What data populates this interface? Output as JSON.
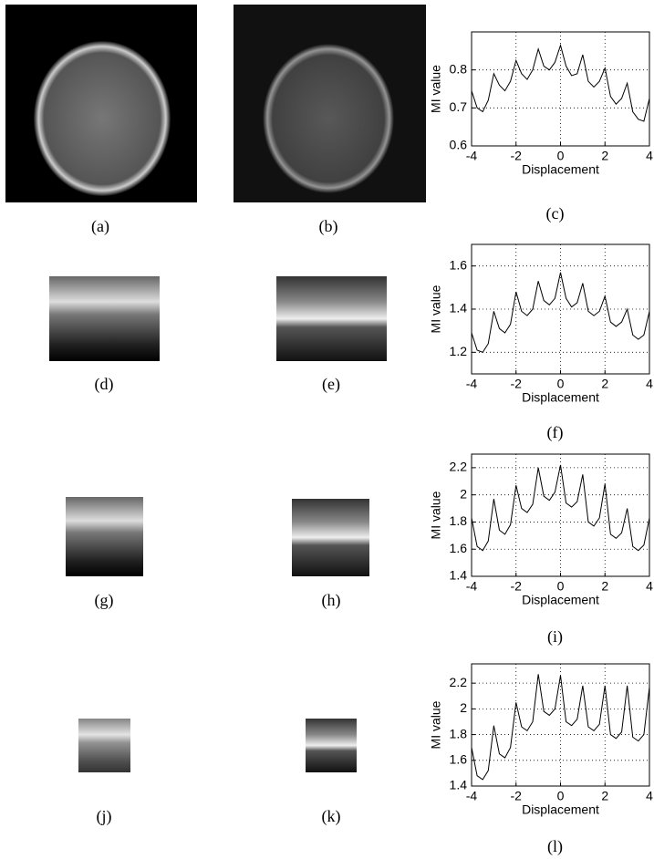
{
  "image_captions": [
    "(a)",
    "(b)",
    "(d)",
    "(e)",
    "(g)",
    "(h)",
    "(j)",
    "(k)"
  ],
  "chart_data": [
    {
      "type": "line",
      "caption": "(c)",
      "xlabel": "Displacement",
      "ylabel": "MI value",
      "x": [
        -4,
        -3.75,
        -3.5,
        -3.25,
        -3,
        -2.75,
        -2.5,
        -2.25,
        -2,
        -1.75,
        -1.5,
        -1.25,
        -1,
        -0.75,
        -0.5,
        -0.25,
        0,
        0.25,
        0.5,
        0.75,
        1,
        1.25,
        1.5,
        1.75,
        2,
        2.25,
        2.5,
        2.75,
        3,
        3.25,
        3.5,
        3.75,
        4
      ],
      "color": "#000000",
      "values": [
        0.745,
        0.7,
        0.69,
        0.72,
        0.79,
        0.76,
        0.745,
        0.77,
        0.825,
        0.79,
        0.775,
        0.8,
        0.855,
        0.81,
        0.8,
        0.82,
        0.865,
        0.81,
        0.785,
        0.79,
        0.84,
        0.77,
        0.755,
        0.77,
        0.805,
        0.73,
        0.71,
        0.725,
        0.765,
        0.69,
        0.67,
        0.665,
        0.725
      ],
      "xlim": [
        -4,
        4
      ],
      "ylim": [
        0.6,
        0.9
      ],
      "xticks": [
        -4,
        -2,
        0,
        2,
        4
      ],
      "yticks": [
        0.6,
        0.7,
        0.8
      ],
      "grid": true
    },
    {
      "type": "line",
      "caption": "(f)",
      "xlabel": "Displacement",
      "ylabel": "MI value",
      "x": [
        -4,
        -3.75,
        -3.5,
        -3.25,
        -3,
        -2.75,
        -2.5,
        -2.25,
        -2,
        -1.75,
        -1.5,
        -1.25,
        -1,
        -0.75,
        -0.5,
        -0.25,
        0,
        0.25,
        0.5,
        0.75,
        1,
        1.25,
        1.5,
        1.75,
        2,
        2.25,
        2.5,
        2.75,
        3,
        3.25,
        3.5,
        3.75,
        4
      ],
      "color": "#000000",
      "values": [
        1.29,
        1.21,
        1.2,
        1.24,
        1.39,
        1.31,
        1.29,
        1.33,
        1.48,
        1.39,
        1.37,
        1.4,
        1.53,
        1.44,
        1.42,
        1.45,
        1.57,
        1.45,
        1.41,
        1.43,
        1.52,
        1.39,
        1.37,
        1.39,
        1.46,
        1.34,
        1.32,
        1.34,
        1.4,
        1.28,
        1.26,
        1.28,
        1.39
      ],
      "xlim": [
        -4,
        4
      ],
      "ylim": [
        1.1,
        1.7
      ],
      "xticks": [
        -4,
        -2,
        0,
        2,
        4
      ],
      "yticks": [
        1.2,
        1.4,
        1.6
      ],
      "grid": true
    },
    {
      "type": "line",
      "caption": "(i)",
      "xlabel": "Displacement",
      "ylabel": "MI value",
      "x": [
        -4,
        -3.75,
        -3.5,
        -3.25,
        -3,
        -2.75,
        -2.5,
        -2.25,
        -2,
        -1.75,
        -1.5,
        -1.25,
        -1,
        -0.75,
        -0.5,
        -0.25,
        0,
        0.25,
        0.5,
        0.75,
        1,
        1.25,
        1.5,
        1.75,
        2,
        2.25,
        2.5,
        2.75,
        3,
        3.25,
        3.5,
        3.75,
        4
      ],
      "color": "#000000",
      "values": [
        1.83,
        1.62,
        1.59,
        1.66,
        1.97,
        1.74,
        1.71,
        1.78,
        2.07,
        1.9,
        1.87,
        1.93,
        2.2,
        1.99,
        1.96,
        2.02,
        2.22,
        1.94,
        1.91,
        1.95,
        2.15,
        1.8,
        1.77,
        1.83,
        2.08,
        1.71,
        1.68,
        1.72,
        1.9,
        1.62,
        1.59,
        1.63,
        1.83
      ],
      "xlim": [
        -4,
        4
      ],
      "ylim": [
        1.4,
        2.3
      ],
      "xticks": [
        -4,
        -2,
        0,
        2,
        4
      ],
      "yticks": [
        1.4,
        1.6,
        1.8,
        2,
        2.2
      ],
      "grid": true
    },
    {
      "type": "line",
      "caption": "(l)",
      "xlabel": "Displacement",
      "ylabel": "MI value",
      "x": [
        -4,
        -3.75,
        -3.5,
        -3.25,
        -3,
        -2.75,
        -2.5,
        -2.25,
        -2,
        -1.75,
        -1.5,
        -1.25,
        -1,
        -0.75,
        -0.5,
        -0.25,
        0,
        0.25,
        0.5,
        0.75,
        1,
        1.25,
        1.5,
        1.75,
        2,
        2.25,
        2.5,
        2.75,
        3,
        3.25,
        3.5,
        3.75,
        4
      ],
      "color": "#000000",
      "values": [
        1.7,
        1.48,
        1.45,
        1.52,
        1.87,
        1.65,
        1.62,
        1.7,
        2.05,
        1.86,
        1.83,
        1.9,
        2.27,
        1.98,
        1.95,
        2.0,
        2.26,
        1.9,
        1.87,
        1.92,
        2.18,
        1.86,
        1.83,
        1.88,
        2.18,
        1.8,
        1.77,
        1.82,
        2.18,
        1.78,
        1.75,
        1.8,
        2.17
      ],
      "xlim": [
        -4,
        4
      ],
      "ylim": [
        1.4,
        2.35
      ],
      "xticks": [
        -4,
        -2,
        0,
        2,
        4
      ],
      "yticks": [
        1.4,
        1.6,
        1.8,
        2,
        2.2
      ],
      "grid": true
    }
  ]
}
